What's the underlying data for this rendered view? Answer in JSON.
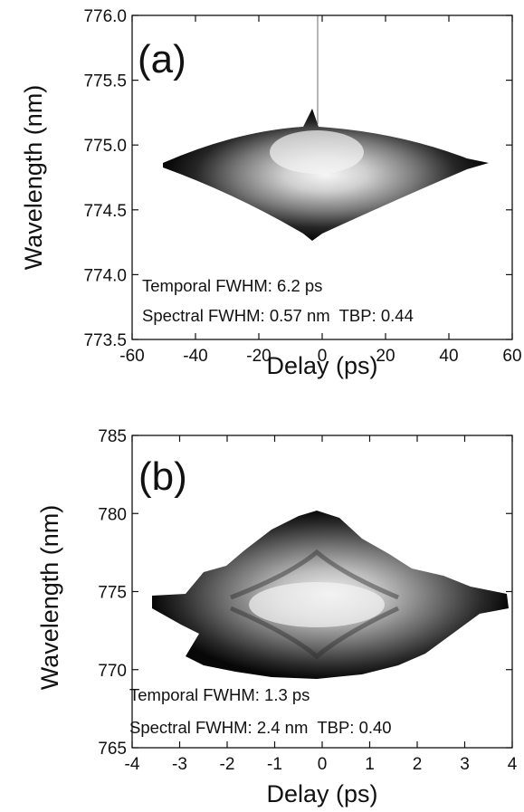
{
  "chart_data": [
    {
      "type": "heatmap",
      "panel_label": "(a)",
      "xlabel": "Delay (ps)",
      "ylabel": "Wavelength (nm)",
      "xlim": [
        -60,
        60
      ],
      "ylim": [
        773.5,
        776.0
      ],
      "x_ticks": [
        "-60",
        "-40",
        "-20",
        "0",
        "20",
        "40",
        "60"
      ],
      "y_ticks": [
        "773.5",
        "774.0",
        "774.5",
        "775.0",
        "775.5",
        "776.0"
      ],
      "annotations": [
        "Temporal FWHM: 6.2 ps",
        "Spectral FWHM: 0.57 nm  TBP: 0.44"
      ],
      "colormap": "grayscale (white = high intensity, black = low)",
      "center": {
        "delay_ps": 0,
        "wavelength_nm": 774.8
      },
      "extent": {
        "delay_ps": [
          -48,
          48
        ],
        "wavelength_nm": [
          774.3,
          775.3
        ]
      },
      "temporal_fwhm_ps": 6.2,
      "spectral_fwhm_nm": 0.57,
      "tbp": 0.44
    },
    {
      "type": "heatmap",
      "panel_label": "(b)",
      "xlabel": "Delay (ps)",
      "ylabel": "Wavelength (nm)",
      "xlim": [
        -4,
        4
      ],
      "ylim": [
        765,
        785
      ],
      "x_ticks": [
        "-4",
        "-3",
        "-2",
        "-1",
        "0",
        "1",
        "2",
        "3",
        "4"
      ],
      "y_ticks": [
        "765",
        "770",
        "775",
        "780",
        "785"
      ],
      "annotations": [
        "Temporal FWHM: 1.3 ps",
        "Spectral FWHM: 2.4 nm  TBP: 0.40"
      ],
      "colormap": "grayscale (white = high intensity, black = low)",
      "center": {
        "delay_ps": 0,
        "wavelength_nm": 774.5
      },
      "extent": {
        "delay_ps": [
          -3.9,
          3.9
        ],
        "wavelength_nm": [
          769.3,
          780.2
        ]
      },
      "temporal_fwhm_ps": 1.3,
      "spectral_fwhm_nm": 2.4,
      "tbp": 0.4
    }
  ]
}
